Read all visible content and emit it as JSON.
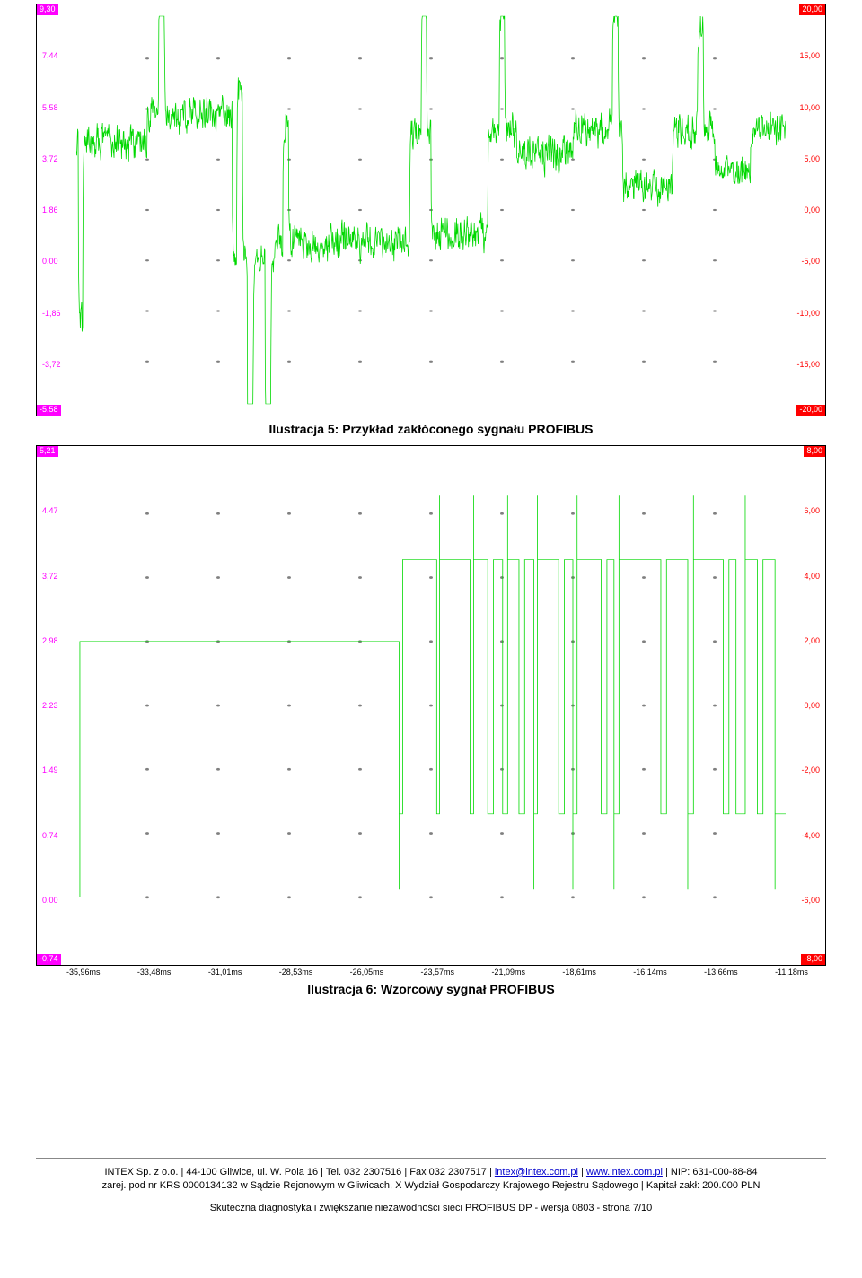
{
  "chart1": {
    "type": "line",
    "corner_tl": "9,30",
    "corner_bl": "-5,58",
    "corner_tr": "20,00",
    "corner_br": "-20,00",
    "left_ticks": [
      {
        "v": "7,44",
        "p": 0.125
      },
      {
        "v": "5,58",
        "p": 0.25
      },
      {
        "v": "3,72",
        "p": 0.375
      },
      {
        "v": "1,86",
        "p": 0.5
      },
      {
        "v": "0,00",
        "p": 0.625
      },
      {
        "v": "-1,86",
        "p": 0.75
      },
      {
        "v": "-3,72",
        "p": 0.875
      }
    ],
    "right_ticks": [
      {
        "v": "15,00",
        "p": 0.125
      },
      {
        "v": "10,00",
        "p": 0.25
      },
      {
        "v": "5,00",
        "p": 0.375
      },
      {
        "v": "0,00",
        "p": 0.5
      },
      {
        "v": "-5,00",
        "p": 0.625
      },
      {
        "v": "-10,00",
        "p": 0.75
      },
      {
        "v": "-15,00",
        "p": 0.875
      }
    ],
    "background_color": "#ffffff",
    "grid_color": "#808080",
    "line_color": "#00d800",
    "grid_cols": 10,
    "grid_rows": 8
  },
  "caption1": "Ilustracja 5: Przykład zakłóconego sygnału PROFIBUS",
  "chart2": {
    "type": "line",
    "corner_tl": "5,21",
    "corner_bl": "-0,74",
    "corner_tr": "8,00",
    "corner_br": "-8,00",
    "left_ticks": [
      {
        "v": "4,47",
        "p": 0.125
      },
      {
        "v": "3,72",
        "p": 0.25
      },
      {
        "v": "2,98",
        "p": 0.375
      },
      {
        "v": "2,23",
        "p": 0.5
      },
      {
        "v": "1,49",
        "p": 0.625
      },
      {
        "v": "0,74",
        "p": 0.75
      },
      {
        "v": "0,00",
        "p": 0.875
      }
    ],
    "right_ticks": [
      {
        "v": "6,00",
        "p": 0.125
      },
      {
        "v": "4,00",
        "p": 0.25
      },
      {
        "v": "2,00",
        "p": 0.375
      },
      {
        "v": "0,00",
        "p": 0.5
      },
      {
        "v": "-2,00",
        "p": 0.625
      },
      {
        "v": "-4,00",
        "p": 0.75
      },
      {
        "v": "-6,00",
        "p": 0.875
      }
    ],
    "x_ticks": [
      "-35,96ms",
      "-33,48ms",
      "-31,01ms",
      "-28,53ms",
      "-26,05ms",
      "-23,57ms",
      "-21,09ms",
      "-18,61ms",
      "-16,14ms",
      "-13,66ms",
      "-11,18ms"
    ],
    "background_color": "#ffffff",
    "grid_color": "#808080",
    "line_color": "#00d800",
    "grid_cols": 10,
    "grid_rows": 8,
    "signal_levels": {
      "idle": 0.375,
      "low": 0.712,
      "high": 0.215,
      "spike_low": 0.86,
      "spike_high": 0.09
    },
    "edges": [
      {
        "x": 0.455,
        "t": "low",
        "sp": 1
      },
      {
        "x": 0.46,
        "t": "high"
      },
      {
        "x": 0.508,
        "t": "low"
      },
      {
        "x": 0.512,
        "t": "high",
        "sp": 1
      },
      {
        "x": 0.555,
        "t": "low"
      },
      {
        "x": 0.56,
        "t": "high",
        "sp": 1
      },
      {
        "x": 0.58,
        "t": "low"
      },
      {
        "x": 0.588,
        "t": "high"
      },
      {
        "x": 0.601,
        "t": "low"
      },
      {
        "x": 0.608,
        "t": "high",
        "sp": 1
      },
      {
        "x": 0.624,
        "t": "low"
      },
      {
        "x": 0.632,
        "t": "high"
      },
      {
        "x": 0.645,
        "t": "low",
        "sp": 1
      },
      {
        "x": 0.65,
        "t": "high",
        "sp": 1
      },
      {
        "x": 0.68,
        "t": "low"
      },
      {
        "x": 0.688,
        "t": "high"
      },
      {
        "x": 0.7,
        "t": "low",
        "sp": 1
      },
      {
        "x": 0.706,
        "t": "high",
        "sp": 1
      },
      {
        "x": 0.74,
        "t": "low"
      },
      {
        "x": 0.748,
        "t": "high"
      },
      {
        "x": 0.758,
        "t": "low",
        "sp": 1
      },
      {
        "x": 0.765,
        "t": "high",
        "sp": 1
      },
      {
        "x": 0.824,
        "t": "low"
      },
      {
        "x": 0.832,
        "t": "high"
      },
      {
        "x": 0.862,
        "t": "low",
        "sp": 1
      },
      {
        "x": 0.87,
        "t": "high",
        "sp": 1
      },
      {
        "x": 0.912,
        "t": "low"
      },
      {
        "x": 0.92,
        "t": "high"
      },
      {
        "x": 0.93,
        "t": "low"
      },
      {
        "x": 0.943,
        "t": "high",
        "sp": 1
      },
      {
        "x": 0.96,
        "t": "low"
      },
      {
        "x": 0.968,
        "t": "high"
      },
      {
        "x": 0.985,
        "t": "low",
        "sp": 1
      }
    ]
  },
  "caption2": "Ilustracja 6: Wzorcowy sygnał PROFIBUS",
  "footer": {
    "line1a": "INTEX Sp. z o.o. | 44-100 Gliwice, ul. W. Pola 16 | Tel. 032 2307516 | Fax 032 2307517 | ",
    "email": "intex@intex.com.pl",
    "line1b": " | ",
    "url": "www.intex.com.pl",
    "line1c": " | NIP: 631-000-88-84",
    "line2": "zarej. pod nr KRS 0000134132 w Sądzie Rejonowym w Gliwicach, X Wydział Gospodarczy Krajowego Rejestru Sądowego | Kapitał zakł: 200.000 PLN",
    "sub": "Skuteczna diagnostyka i zwiększanie niezawodności sieci PROFIBUS DP - wersja 0803 - strona 7/10"
  }
}
